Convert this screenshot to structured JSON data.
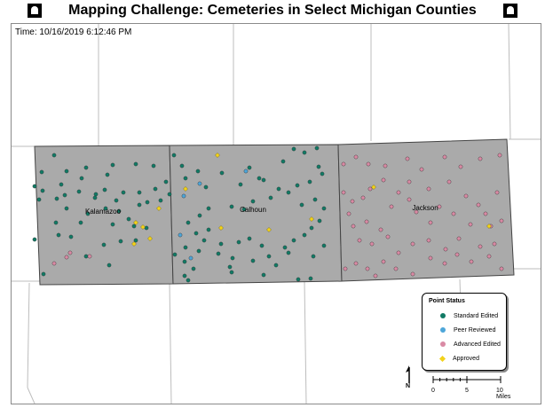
{
  "title": "Mapping Challenge: Cemeteries in Select Michigan Counties",
  "timestamp": "Time: 10/16/2019 6:12:46 PM",
  "counties": [
    "Kalamazoo",
    "Calhoun",
    "Jackson"
  ],
  "legend": {
    "title": "Point Status",
    "items": [
      {
        "label": "Standard Edited",
        "shape": "circle",
        "color": "#117a65"
      },
      {
        "label": "Peer Reviewed",
        "shape": "circle",
        "color": "#4da6d9"
      },
      {
        "label": "Advanced Edited",
        "shape": "circle",
        "color": "#d98aa4"
      },
      {
        "label": "Approved",
        "shape": "diamond",
        "color": "#f2d21b"
      }
    ]
  },
  "north_label": "N",
  "scale": {
    "labels": [
      "0",
      "5",
      "10 Miles"
    ]
  },
  "colors": {
    "county_fill": "#aaaaaa",
    "county_border": "#444444",
    "road": "#bdbdbd"
  }
}
